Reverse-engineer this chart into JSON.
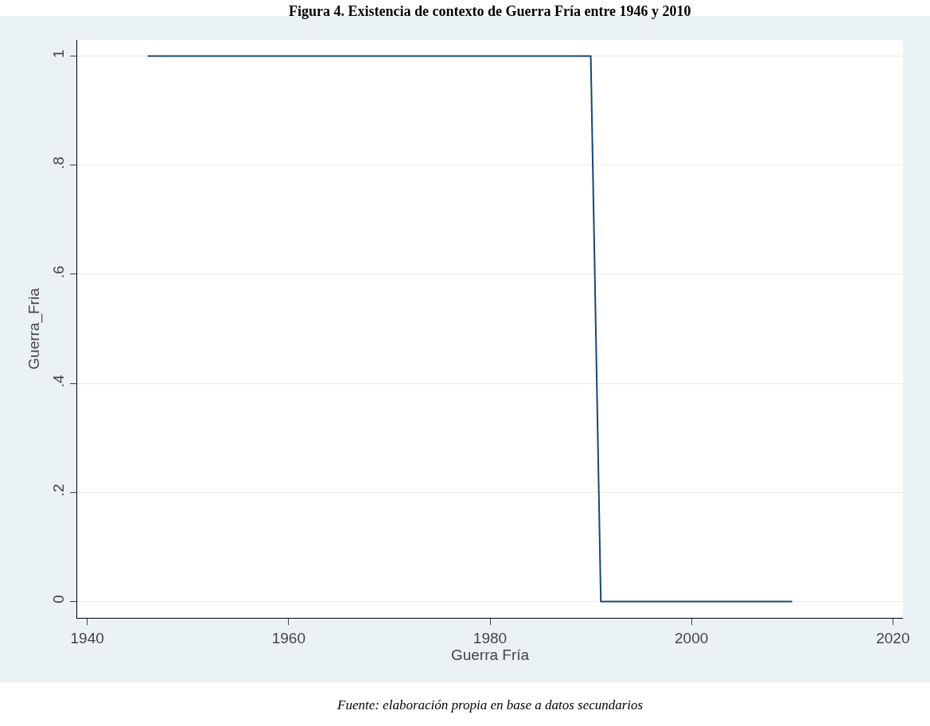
{
  "chart_data": {
    "type": "line",
    "title": "Figura 4. Existencia de contexto de Guerra Fría entre 1946 y 2010",
    "xlabel": "Guerra Fría",
    "ylabel": "Guerra_Fria",
    "annotations": [
      "Fuente: elaboración propia en base a datos secundarios"
    ],
    "x": [
      1946,
      1990,
      1991,
      2010
    ],
    "series": [
      {
        "color": "#1a476f",
        "values": [
          1,
          1,
          0,
          0
        ]
      }
    ],
    "xlim": [
      1939,
      2021
    ],
    "xticks": [
      1940,
      1960,
      1980,
      2000,
      2020
    ],
    "ylim": [
      -0.03,
      1.03
    ],
    "yticks": [
      0,
      {
        "value": 0.2,
        "label": ".2"
      },
      {
        "value": 0.4,
        "label": ".4"
      },
      {
        "value": 0.6,
        "label": ".6"
      },
      {
        "value": 0.8,
        "label": ".8"
      },
      1
    ],
    "grid": "y",
    "marker": "none",
    "line_style": "solid"
  }
}
